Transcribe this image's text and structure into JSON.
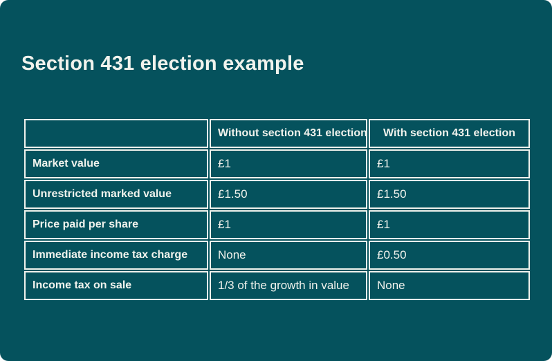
{
  "card": {
    "title": "Section 431 election example",
    "background_color": "#05525D",
    "text_color": "#F1F3ED",
    "border_color": "#F1F3ED",
    "page_background": "#FFFFFF"
  },
  "table": {
    "columns": [
      "",
      "Without section 431 election",
      "With section 431 election"
    ],
    "rows": [
      {
        "label": "Market value",
        "without": "£1",
        "with": "£1"
      },
      {
        "label": "Unrestricted marked value",
        "without": "£1.50",
        "with": "£1.50"
      },
      {
        "label": "Price paid per share",
        "without": "£1",
        "with": "£1"
      },
      {
        "label": "Immediate income tax charge",
        "without": "None",
        "with": "£0.50"
      },
      {
        "label": "Income tax on sale",
        "without": "1/3 of the growth in value",
        "with": "None"
      }
    ]
  },
  "chart_data": {
    "type": "table",
    "title": "Section 431 election example",
    "columns": [
      "",
      "Without section 431 election",
      "With section 431 election"
    ],
    "rows": [
      [
        "Market value",
        "£1",
        "£1"
      ],
      [
        "Unrestricted marked value",
        "£1.50",
        "£1.50"
      ],
      [
        "Price paid per share",
        "£1",
        "£1"
      ],
      [
        "Immediate income tax charge",
        "None",
        "£0.50"
      ],
      [
        "Income tax on sale",
        "1/3 of the growth in value",
        "None"
      ]
    ],
    "layout_hints": {
      "header_row_bold": true,
      "row_labels_bold": true,
      "cell_borders": "white separated borders on teal background",
      "header_alignment": "center",
      "body_alignment": "left"
    }
  }
}
